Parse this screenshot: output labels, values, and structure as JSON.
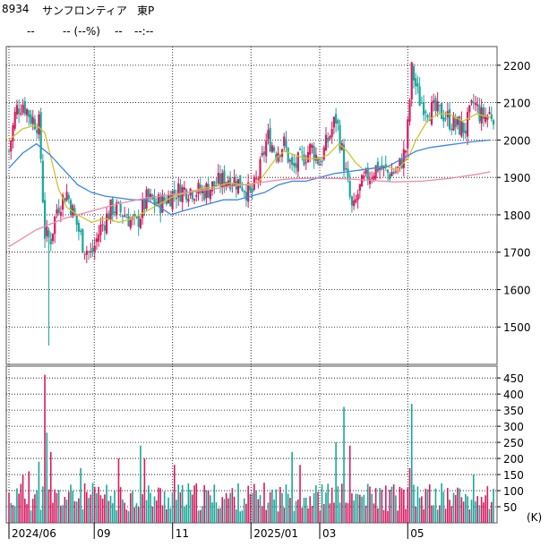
{
  "header": {
    "code": "8934",
    "name": "サンフロンティア",
    "market": "東P",
    "price": "--",
    "change": "-- (--%)",
    "volume": "--",
    "time": "--:--"
  },
  "colors": {
    "up": "#d81b60",
    "down": "#18a89a",
    "ma_short": "#d4c22a",
    "ma_mid": "#3a86e6",
    "ma_long": "#f08aa8",
    "vol_up": "#d81b60",
    "vol_down": "#18a89a",
    "grid": "#000000"
  },
  "chart_data": [
    {
      "type": "candlestick",
      "ylim": [
        1400,
        2250
      ],
      "yticks": [
        1500,
        1600,
        1700,
        1800,
        1900,
        2000,
        2100,
        2200
      ],
      "x_labels": [
        "2024/06",
        "09",
        "11",
        "2025/01",
        "03",
        "05"
      ],
      "x_label_days": [
        0,
        62,
        119,
        176,
        226,
        290
      ],
      "days_span": 353,
      "anchors": [
        {
          "day": 0,
          "close": 1970
        },
        {
          "day": 5,
          "close": 2080
        },
        {
          "day": 10,
          "close": 2100
        },
        {
          "day": 16,
          "close": 2060
        },
        {
          "day": 22,
          "close": 2040
        },
        {
          "day": 26,
          "close": 1750
        },
        {
          "day": 30,
          "close": 1730
        },
        {
          "day": 35,
          "close": 1820
        },
        {
          "day": 42,
          "close": 1860
        },
        {
          "day": 48,
          "close": 1790
        },
        {
          "day": 54,
          "close": 1720
        },
        {
          "day": 60,
          "close": 1690
        },
        {
          "day": 66,
          "close": 1760
        },
        {
          "day": 75,
          "close": 1820
        },
        {
          "day": 85,
          "close": 1800
        },
        {
          "day": 92,
          "close": 1770
        },
        {
          "day": 100,
          "close": 1840
        },
        {
          "day": 110,
          "close": 1830
        },
        {
          "day": 120,
          "close": 1860
        },
        {
          "day": 130,
          "close": 1870
        },
        {
          "day": 140,
          "close": 1860
        },
        {
          "day": 150,
          "close": 1880
        },
        {
          "day": 160,
          "close": 1900
        },
        {
          "day": 170,
          "close": 1880
        },
        {
          "day": 176,
          "close": 1850
        },
        {
          "day": 182,
          "close": 1910
        },
        {
          "day": 188,
          "close": 2010
        },
        {
          "day": 194,
          "close": 1970
        },
        {
          "day": 200,
          "close": 1990
        },
        {
          "day": 206,
          "close": 1920
        },
        {
          "day": 213,
          "close": 1950
        },
        {
          "day": 220,
          "close": 1980
        },
        {
          "day": 226,
          "close": 1940
        },
        {
          "day": 232,
          "close": 2000
        },
        {
          "day": 238,
          "close": 2060
        },
        {
          "day": 244,
          "close": 1930
        },
        {
          "day": 250,
          "close": 1800
        },
        {
          "day": 254,
          "close": 1860
        },
        {
          "day": 260,
          "close": 1900
        },
        {
          "day": 268,
          "close": 1930
        },
        {
          "day": 276,
          "close": 1910
        },
        {
          "day": 283,
          "close": 1920
        },
        {
          "day": 289,
          "close": 1980
        },
        {
          "day": 293,
          "close": 2190
        },
        {
          "day": 298,
          "close": 2110
        },
        {
          "day": 306,
          "close": 2080
        },
        {
          "day": 316,
          "close": 2070
        },
        {
          "day": 324,
          "close": 2040
        },
        {
          "day": 332,
          "close": 2030
        },
        {
          "day": 338,
          "close": 2100
        },
        {
          "day": 344,
          "close": 2060
        },
        {
          "day": 350,
          "close": 2070
        }
      ],
      "wicks": [
        {
          "day": 29,
          "low": 1450
        },
        {
          "day": 250,
          "low": 1680
        },
        {
          "day": 293,
          "high": 2210
        },
        {
          "day": 240,
          "high": 2070
        },
        {
          "day": 10,
          "high": 2110
        }
      ],
      "moving_averages": [
        {
          "color_key": "ma_short",
          "points": [
            [
              0,
              2000
            ],
            [
              10,
              2030
            ],
            [
              20,
              2040
            ],
            [
              26,
              2020
            ],
            [
              30,
              1960
            ],
            [
              36,
              1870
            ],
            [
              42,
              1820
            ],
            [
              50,
              1800
            ],
            [
              60,
              1780
            ],
            [
              70,
              1790
            ],
            [
              80,
              1780
            ],
            [
              90,
              1790
            ],
            [
              100,
              1810
            ],
            [
              110,
              1830
            ],
            [
              120,
              1850
            ],
            [
              130,
              1860
            ],
            [
              140,
              1870
            ],
            [
              150,
              1875
            ],
            [
              160,
              1885
            ],
            [
              170,
              1880
            ],
            [
              176,
              1880
            ],
            [
              182,
              1890
            ],
            [
              188,
              1920
            ],
            [
              194,
              1950
            ],
            [
              200,
              1970
            ],
            [
              208,
              1960
            ],
            [
              216,
              1950
            ],
            [
              224,
              1950
            ],
            [
              232,
              1960
            ],
            [
              240,
              1990
            ],
            [
              246,
              1970
            ],
            [
              252,
              1940
            ],
            [
              258,
              1920
            ],
            [
              266,
              1925
            ],
            [
              274,
              1930
            ],
            [
              282,
              1920
            ],
            [
              290,
              1950
            ],
            [
              296,
              2000
            ],
            [
              304,
              2050
            ],
            [
              312,
              2070
            ],
            [
              320,
              2070
            ],
            [
              330,
              2050
            ],
            [
              340,
              2070
            ],
            [
              350,
              2060
            ]
          ]
        },
        {
          "color_key": "ma_mid",
          "points": [
            [
              0,
              1925
            ],
            [
              10,
              1965
            ],
            [
              20,
              1990
            ],
            [
              30,
              1960
            ],
            [
              40,
              1920
            ],
            [
              50,
              1880
            ],
            [
              60,
              1860
            ],
            [
              70,
              1850
            ],
            [
              80,
              1845
            ],
            [
              90,
              1840
            ],
            [
              100,
              1840
            ],
            [
              110,
              1820
            ],
            [
              118,
              1800
            ],
            [
              126,
              1810
            ],
            [
              136,
              1820
            ],
            [
              146,
              1830
            ],
            [
              156,
              1840
            ],
            [
              166,
              1840
            ],
            [
              176,
              1850
            ],
            [
              186,
              1860
            ],
            [
              196,
              1880
            ],
            [
              206,
              1890
            ],
            [
              216,
              1890
            ],
            [
              226,
              1900
            ],
            [
              236,
              1910
            ],
            [
              246,
              1915
            ],
            [
              256,
              1920
            ],
            [
              266,
              1925
            ],
            [
              276,
              1930
            ],
            [
              286,
              1950
            ],
            [
              296,
              1970
            ],
            [
              306,
              1980
            ],
            [
              316,
              1985
            ],
            [
              326,
              1990
            ],
            [
              336,
              1995
            ],
            [
              350,
              2000
            ]
          ]
        },
        {
          "color_key": "ma_long",
          "points": [
            [
              0,
              1715
            ],
            [
              20,
              1760
            ],
            [
              40,
              1790
            ],
            [
              60,
              1810
            ],
            [
              80,
              1830
            ],
            [
              100,
              1845
            ],
            [
              120,
              1855
            ],
            [
              140,
              1865
            ],
            [
              160,
              1875
            ],
            [
              180,
              1885
            ],
            [
              200,
              1895
            ],
            [
              220,
              1898
            ],
            [
              240,
              1897
            ],
            [
              260,
              1893
            ],
            [
              280,
              1888
            ],
            [
              300,
              1890
            ],
            [
              320,
              1897
            ],
            [
              340,
              1908
            ],
            [
              350,
              1915
            ]
          ]
        }
      ]
    },
    {
      "type": "bar",
      "unit": "(K)",
      "ylim": [
        0,
        470
      ],
      "yticks": [
        50,
        100,
        150,
        200,
        250,
        300,
        350,
        400,
        450
      ],
      "base_level": 100,
      "spikes": [
        {
          "day": 26,
          "value": 460
        },
        {
          "day": 27,
          "value": 340
        },
        {
          "day": 28,
          "value": 280
        },
        {
          "day": 30,
          "value": 220
        },
        {
          "day": 10,
          "value": 150
        },
        {
          "day": 14,
          "value": 160
        },
        {
          "day": 22,
          "value": 190
        },
        {
          "day": 52,
          "value": 170
        },
        {
          "day": 72,
          "value": 180
        },
        {
          "day": 80,
          "value": 200
        },
        {
          "day": 96,
          "value": 240
        },
        {
          "day": 99,
          "value": 200
        },
        {
          "day": 114,
          "value": 350
        },
        {
          "day": 120,
          "value": 180
        },
        {
          "day": 140,
          "value": 150
        },
        {
          "day": 150,
          "value": 160
        },
        {
          "day": 166,
          "value": 160
        },
        {
          "day": 206,
          "value": 220
        },
        {
          "day": 212,
          "value": 180
        },
        {
          "day": 230,
          "value": 200
        },
        {
          "day": 234,
          "value": 380
        },
        {
          "day": 238,
          "value": 250
        },
        {
          "day": 240,
          "value": 300
        },
        {
          "day": 244,
          "value": 360
        },
        {
          "day": 248,
          "value": 240
        },
        {
          "day": 250,
          "value": 210
        },
        {
          "day": 293,
          "value": 370
        },
        {
          "day": 291,
          "value": 170
        },
        {
          "day": 338,
          "value": 150
        },
        {
          "day": 340,
          "value": 110
        }
      ]
    }
  ]
}
